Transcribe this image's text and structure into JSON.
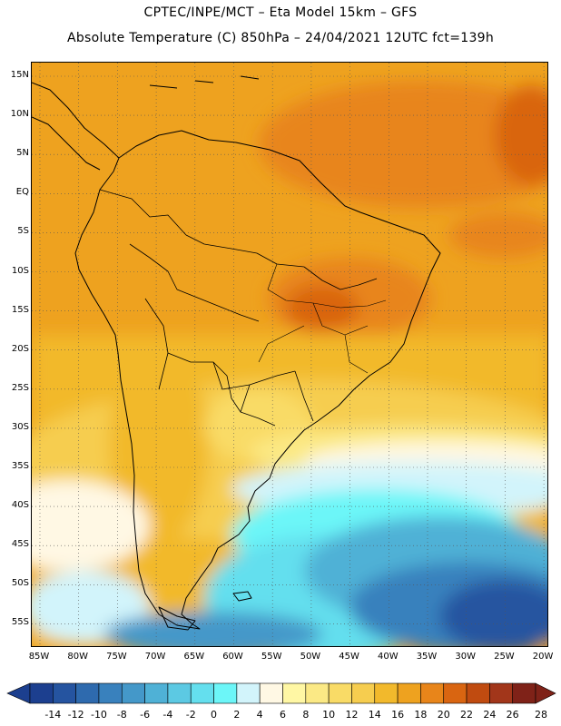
{
  "header": {
    "title_line1": "CPTEC/INPE/MCT – Eta Model 15km – GFS",
    "title_line2": "Absolute Temperature (C) 850hPa – 24/04/2021 12UTC fct=139h"
  },
  "map": {
    "lat_labels": [
      "15N",
      "10N",
      "5N",
      "EQ",
      "5S",
      "10S",
      "15S",
      "20S",
      "25S",
      "30S",
      "35S",
      "40S",
      "45S",
      "50S",
      "55S"
    ],
    "lon_labels": [
      "85W",
      "80W",
      "75W",
      "70W",
      "65W",
      "60W",
      "55W",
      "50W",
      "45W",
      "40W",
      "35W",
      "30W",
      "25W",
      "20W"
    ],
    "grid": "dotted",
    "field": "Absolute Temperature (C) 850hPa"
  },
  "colorbar": {
    "labels": [
      "-14",
      "-12",
      "-10",
      "-8",
      "-6",
      "-4",
      "-2",
      "0",
      "2",
      "4",
      "6",
      "8",
      "10",
      "12",
      "14",
      "16",
      "18",
      "20",
      "22",
      "24",
      "26",
      "28"
    ],
    "colors": [
      "#1c3f8f",
      "#2554a0",
      "#2e6aae",
      "#3981bd",
      "#4498c9",
      "#4fb1d6",
      "#5cc9e3",
      "#64dfee",
      "#6cf6f8",
      "#d2f4fb",
      "#fff8e4",
      "#fff7a4",
      "#fbe985",
      "#f9db66",
      "#f6cd4f",
      "#f2b92c",
      "#eea21f",
      "#e8851a",
      "#d96511",
      "#c04b10",
      "#a2361a",
      "#7f2218"
    ]
  }
}
